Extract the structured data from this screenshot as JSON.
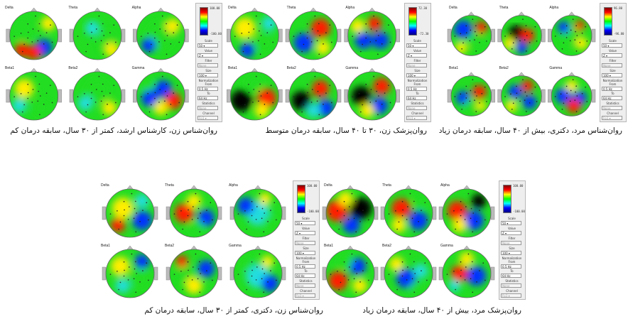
{
  "captions": {
    "p1": "روان‌شناس زن، کارشناس ارشد، کمتر از ۳۰ سال، سابقه درمان کم",
    "p2": "روان‌پزشک زن، ۳۰ تا ۴۰ سال، سابقه درمان متوسط",
    "p3": "روان‌شناس مرد، دکتری، بیش از ۴۰ سال، سابقه درمان زیاد",
    "p4": "روان‌شناس زن، دکتری، کمتر از ۳۰ سال، سابقه درمان کم",
    "p5": "روان‌پزشک مرد، بیش از ۴۰ سال، سابقه درمان زیاد"
  },
  "map_labels": [
    "Delta",
    "Theta",
    "Alpha",
    "Beta1",
    "Beta2",
    "Gamma"
  ],
  "panels": [
    {
      "cmax": "100.00",
      "cmin": "-100.00"
    },
    {
      "cmax": "72.30",
      "cmin": "-72.30"
    },
    {
      "cmax": "96.80",
      "cmin": "-96.80"
    },
    {
      "cmax": "100.00",
      "cmin": "-100.00"
    },
    {
      "cmax": "100.00",
      "cmin": "-100.00"
    }
  ],
  "controls": {
    "scale_label": "Scale",
    "scale_value": "50 ▾",
    "value_label": "Value",
    "value_value": "Z ▾",
    "filter_label": "Filter",
    "filter_value": "None",
    "size_label": "Size",
    "size_value": "100 ▾",
    "norm_label": "Normalization",
    "from_label": "From",
    "from_value": "0.5 Hz",
    "to_label": "To",
    "to_value": "64 Hz",
    "stats_label": "Statistics",
    "stats_value": "None",
    "channel_label": "Channel",
    "channel_value": "Fp1 ▾"
  },
  "colors": {
    "dark_red": "#7a0000",
    "red": "#ff1a00",
    "yellow": "#ffee00",
    "green": "#22dd22",
    "cyan": "#22dddd",
    "blue": "#0033ff",
    "black": "#000000"
  }
}
